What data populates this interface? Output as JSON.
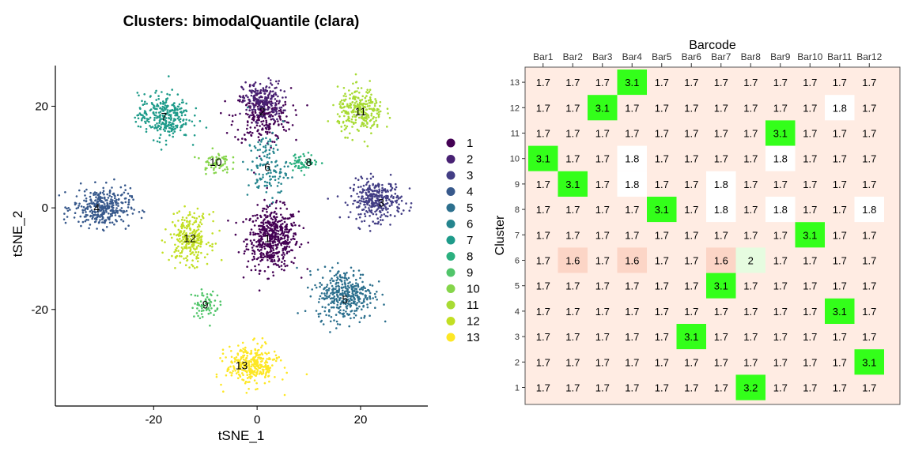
{
  "scatter": {
    "title": "Clusters: bimodalQuantile (clara)",
    "chart_data": {
      "type": "scatter",
      "title": "Clusters: bimodalQuantile (clara)",
      "xlabel": "tSNE_1",
      "ylabel": "tSNE_2",
      "xlim": [
        -39,
        33
      ],
      "ylim": [
        -39,
        28
      ],
      "xticks": [
        -20,
        0,
        20
      ],
      "yticks": [
        -20,
        0,
        20
      ],
      "legend_position": "right",
      "legend": [
        "1",
        "2",
        "3",
        "4",
        "5",
        "6",
        "7",
        "8",
        "9",
        "10",
        "11",
        "12",
        "13"
      ],
      "series": [
        {
          "name": "1",
          "color": "#440154",
          "centers": [
            [
              3,
              -6,
              4.5,
              5.5
            ],
            [
              1,
              18,
              5,
              5
            ]
          ],
          "n": [
            520,
            230
          ],
          "label_at": [
            2,
            -6
          ]
        },
        {
          "name": "2",
          "color": "#482173",
          "centers": [
            [
              1,
              21,
              3.5,
              3.5
            ]
          ],
          "n": [
            200
          ],
          "label_at": [
            1,
            19
          ]
        },
        {
          "name": "3",
          "color": "#433E85",
          "centers": [
            [
              23,
              1.5,
              4.5,
              3.5
            ]
          ],
          "n": [
            320
          ],
          "label_at": [
            24,
            1
          ]
        },
        {
          "name": "4",
          "color": "#38598C",
          "centers": [
            [
              -30,
              0,
              5,
              3.5
            ]
          ],
          "n": [
            340
          ],
          "label_at": [
            -31,
            0
          ]
        },
        {
          "name": "5",
          "color": "#2D708E",
          "centers": [
            [
              17,
              -17,
              5,
              4.5
            ]
          ],
          "n": [
            380
          ],
          "label_at": [
            17,
            -18
          ]
        },
        {
          "name": "6",
          "color": "#25858E",
          "centers": [
            [
              2,
              8,
              3.5,
              6
            ]
          ],
          "n": [
            130
          ],
          "label_at": [
            2,
            8
          ]
        },
        {
          "name": "7",
          "color": "#1E9B8A",
          "centers": [
            [
              -18,
              18,
              4.5,
              4
            ]
          ],
          "n": [
            300
          ],
          "label_at": [
            -18,
            18
          ]
        },
        {
          "name": "8",
          "color": "#2BB07F",
          "centers": [
            [
              9,
              9,
              2.5,
              1.5
            ]
          ],
          "n": [
            60
          ],
          "label_at": [
            10,
            9
          ]
        },
        {
          "name": "9",
          "color": "#51C56A",
          "centers": [
            [
              -10,
              -19,
              2.5,
              2.5
            ]
          ],
          "n": [
            70
          ],
          "label_at": [
            -10,
            -19
          ]
        },
        {
          "name": "10",
          "color": "#85D54A",
          "centers": [
            [
              -8,
              9,
              2.5,
              2
            ]
          ],
          "n": [
            60
          ],
          "label_at": [
            -8,
            9
          ]
        },
        {
          "name": "11",
          "color": "#A8DB34",
          "centers": [
            [
              20,
              19,
              4,
              4
            ]
          ],
          "n": [
            280
          ],
          "label_at": [
            20,
            19
          ]
        },
        {
          "name": "12",
          "color": "#C2DF23",
          "centers": [
            [
              -13,
              -6,
              3.5,
              4.5
            ]
          ],
          "n": [
            260
          ],
          "label_at": [
            -13,
            -6
          ]
        },
        {
          "name": "13",
          "color": "#FDE725",
          "centers": [
            [
              -1,
              -31,
              4.5,
              3.5
            ]
          ],
          "n": [
            320
          ],
          "label_at": [
            -3,
            -31
          ]
        }
      ]
    }
  },
  "heatmap": {
    "chart_data": {
      "type": "heatmap",
      "xlabel": "Barcode",
      "ylabel": "Cluster",
      "x_axis_position": "top",
      "x": [
        "Bar1",
        "Bar2",
        "Bar3",
        "Bar4",
        "Bar5",
        "Bar6",
        "Bar7",
        "Bar8",
        "Bar9",
        "Bar10",
        "Bar11",
        "Bar12"
      ],
      "y": [
        "13",
        "12",
        "11",
        "10",
        "9",
        "8",
        "7",
        "6",
        "5",
        "4",
        "3",
        "2",
        "1"
      ],
      "values": [
        [
          1.7,
          1.7,
          1.7,
          3.1,
          1.7,
          1.7,
          1.7,
          1.7,
          1.7,
          1.7,
          1.7,
          1.7
        ],
        [
          1.7,
          1.7,
          3.1,
          1.7,
          1.7,
          1.7,
          1.7,
          1.7,
          1.7,
          1.7,
          1.8,
          1.7
        ],
        [
          1.7,
          1.7,
          1.7,
          1.7,
          1.7,
          1.7,
          1.7,
          1.7,
          3.1,
          1.7,
          1.7,
          1.7
        ],
        [
          3.1,
          1.7,
          1.7,
          1.8,
          1.7,
          1.7,
          1.7,
          1.7,
          1.8,
          1.7,
          1.7,
          1.7
        ],
        [
          1.7,
          3.1,
          1.7,
          1.8,
          1.7,
          1.7,
          1.8,
          1.7,
          1.7,
          1.7,
          1.7,
          1.7
        ],
        [
          1.7,
          1.7,
          1.7,
          1.7,
          3.1,
          1.7,
          1.8,
          1.7,
          1.8,
          1.7,
          1.7,
          1.8
        ],
        [
          1.7,
          1.7,
          1.7,
          1.7,
          1.7,
          1.7,
          1.7,
          1.7,
          1.7,
          3.1,
          1.7,
          1.7
        ],
        [
          1.7,
          1.6,
          1.7,
          1.6,
          1.7,
          1.7,
          1.6,
          2,
          1.7,
          1.7,
          1.7,
          1.7
        ],
        [
          1.7,
          1.7,
          1.7,
          1.7,
          1.7,
          1.7,
          3.1,
          1.7,
          1.7,
          1.7,
          1.7,
          1.7
        ],
        [
          1.7,
          1.7,
          1.7,
          1.7,
          1.7,
          1.7,
          1.7,
          1.7,
          1.7,
          1.7,
          3.1,
          1.7
        ],
        [
          1.7,
          1.7,
          1.7,
          1.7,
          1.7,
          3.1,
          1.7,
          1.7,
          1.7,
          1.7,
          1.7,
          1.7
        ],
        [
          1.7,
          1.7,
          1.7,
          1.7,
          1.7,
          1.7,
          1.7,
          1.7,
          1.7,
          1.7,
          1.7,
          3.1
        ],
        [
          1.7,
          1.7,
          1.7,
          1.7,
          1.7,
          1.7,
          1.7,
          3.2,
          1.7,
          1.7,
          1.7,
          1.7
        ]
      ],
      "colors": {
        "high": "#33FF1A",
        "mid": "#FFECE3",
        "white": "#FFFFFF",
        "low": "#FCD5C6",
        "light_green": "#E6FCE0"
      }
    }
  }
}
